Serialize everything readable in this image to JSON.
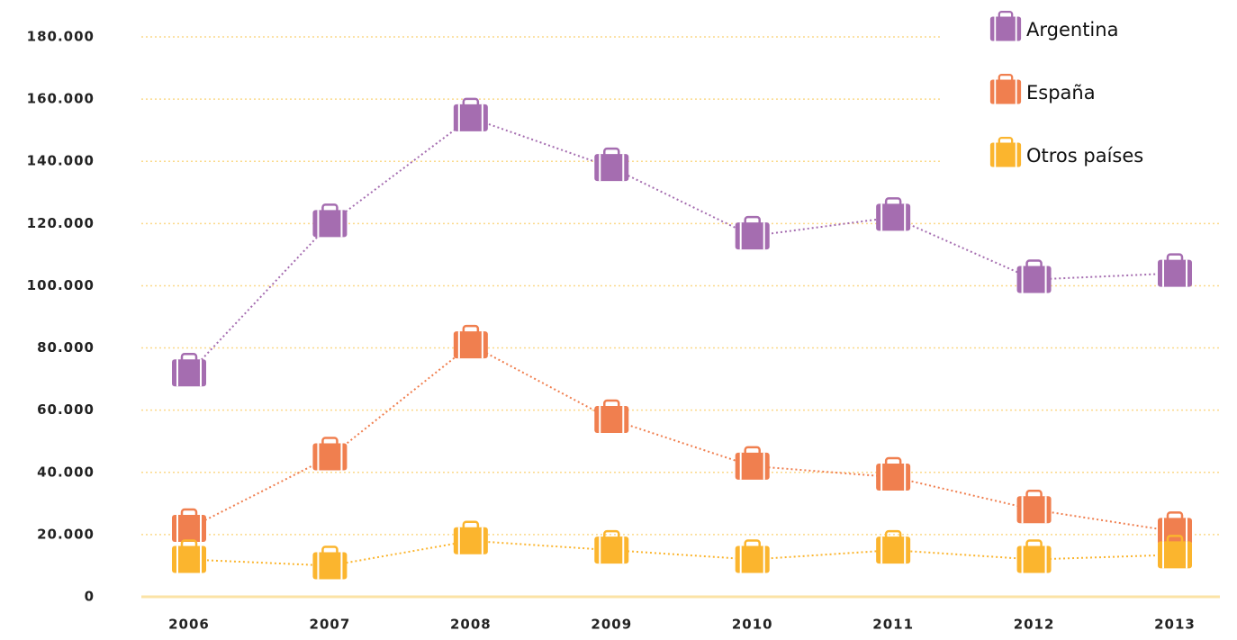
{
  "chart_data": {
    "type": "line",
    "categories": [
      "2006",
      "2007",
      "2008",
      "2009",
      "2010",
      "2011",
      "2012",
      "2013"
    ],
    "series": [
      {
        "name": "Argentina",
        "color": "#a56db0",
        "values": [
          72000,
          120000,
          154000,
          138000,
          116000,
          122000,
          102000,
          104000
        ]
      },
      {
        "name": "España",
        "color": "#f07f4f",
        "values": [
          22000,
          45000,
          81000,
          57000,
          42000,
          38500,
          28000,
          21000
        ]
      },
      {
        "name": "Otros países",
        "color": "#fbb52e",
        "values": [
          12000,
          10000,
          18000,
          15000,
          12000,
          15000,
          12000,
          13500
        ]
      }
    ],
    "ylim": [
      0,
      180000
    ],
    "yticks": [
      0,
      {
        "value": 20000,
        "label": "20.000"
      },
      {
        "value": 40000,
        "label": "40.000"
      },
      {
        "value": 60000,
        "label": "60.000"
      },
      {
        "value": 80000,
        "label": "80.000"
      },
      {
        "value": 100000,
        "label": "100.000"
      },
      {
        "value": 120000,
        "label": "120.000"
      },
      {
        "value": 140000,
        "label": "140.000"
      },
      {
        "value": 160000,
        "label": "160.000"
      },
      {
        "value": 180000,
        "label": "180.000"
      }
    ],
    "grid": true,
    "legend": "top-right"
  }
}
